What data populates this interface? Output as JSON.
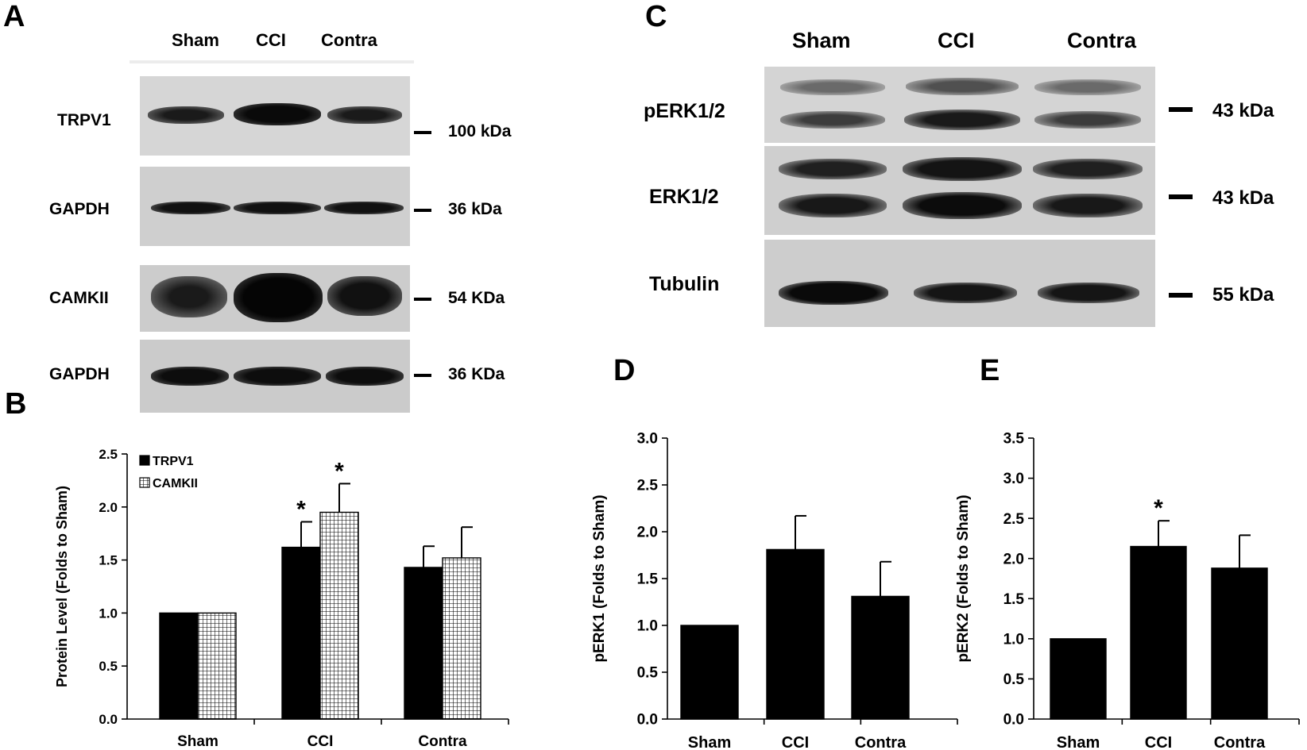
{
  "panels": {
    "a": "A",
    "b": "B",
    "c": "C",
    "d": "D",
    "e": "E"
  },
  "blot_a": {
    "lanes": [
      "Sham",
      "CCI",
      "Contra"
    ],
    "rows": [
      {
        "protein": "TRPV1",
        "mw": "100 kDa"
      },
      {
        "protein": "GAPDH",
        "mw": "36 kDa"
      },
      {
        "protein": "CAMKII",
        "mw": "54 KDa"
      },
      {
        "protein": "GAPDH",
        "mw": "36 KDa"
      }
    ]
  },
  "blot_c": {
    "lanes": [
      "Sham",
      "CCI",
      "Contra"
    ],
    "rows": [
      {
        "protein": "pERK1/2",
        "mw": "43 kDa"
      },
      {
        "protein": "ERK1/2",
        "mw": "43 kDa"
      },
      {
        "protein": "Tubulin",
        "mw": "55 kDa"
      }
    ]
  },
  "chart_data": [
    {
      "panel": "B",
      "type": "bar",
      "categories": [
        "Sham",
        "CCI",
        "Contra"
      ],
      "series": [
        {
          "name": "TRPV1",
          "values": [
            1.0,
            1.62,
            1.43
          ],
          "errors": [
            0.01,
            0.24,
            0.2
          ],
          "sig": [
            "",
            "*",
            ""
          ],
          "fill": "solid"
        },
        {
          "name": "CAMKII",
          "values": [
            1.0,
            1.95,
            1.52
          ],
          "errors": [
            0.01,
            0.27,
            0.29
          ],
          "sig": [
            "",
            "*",
            ""
          ],
          "fill": "grid"
        }
      ],
      "ylabel": "Protein Level (Folds to Sham)",
      "xlabel": "",
      "ylim": [
        0,
        2.5
      ],
      "yticks": [
        "0.0",
        "0.5",
        "1.0",
        "1.5",
        "2.0",
        "2.5"
      ],
      "legend": "top-left"
    },
    {
      "panel": "D",
      "type": "bar",
      "categories": [
        "Sham",
        "CCI",
        "Contra"
      ],
      "series": [
        {
          "values": [
            1.0,
            1.81,
            1.31
          ],
          "errors": [
            0.01,
            0.36,
            0.37
          ],
          "sig": [
            "",
            "",
            ""
          ],
          "fill": "solid"
        }
      ],
      "ylabel": "pERK1 (Folds to Sham)",
      "xlabel": "",
      "ylim": [
        0,
        3.0
      ],
      "yticks": [
        "0.0",
        "0.5",
        "1.0",
        "1.5",
        "2.0",
        "2.5",
        "3.0"
      ]
    },
    {
      "panel": "E",
      "type": "bar",
      "categories": [
        "Sham",
        "CCI",
        "Contra"
      ],
      "series": [
        {
          "values": [
            1.0,
            2.15,
            1.88
          ],
          "errors": [
            0.01,
            0.32,
            0.41
          ],
          "sig": [
            "",
            "*",
            ""
          ],
          "fill": "solid"
        }
      ],
      "ylabel": "pERK2 (Folds to Sham)",
      "xlabel": "",
      "ylim": [
        0,
        3.5
      ],
      "yticks": [
        "0.0",
        "0.5",
        "1.0",
        "1.5",
        "2.0",
        "2.5",
        "3.0",
        "3.5"
      ]
    }
  ]
}
